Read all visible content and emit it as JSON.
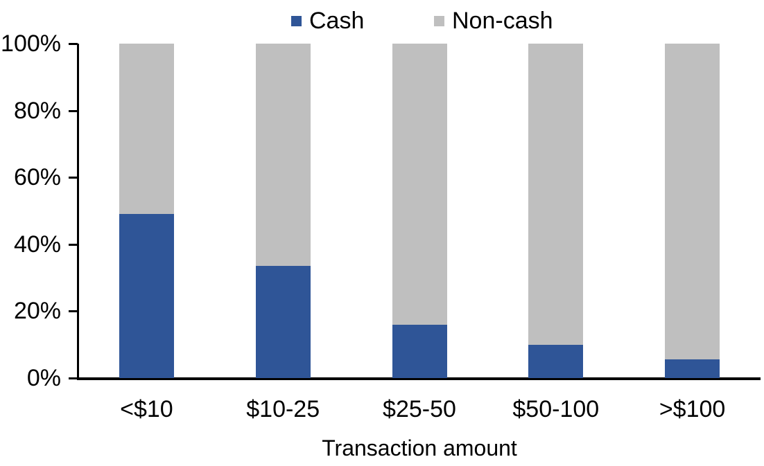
{
  "chart_data": {
    "type": "bar",
    "stacked": true,
    "percent_stacked": true,
    "title": "",
    "xlabel": "Transaction amount",
    "ylabel": "",
    "categories": [
      "<$10",
      "$10-25",
      "$25-50",
      "$50-100",
      ">$100"
    ],
    "series": [
      {
        "name": "Cash",
        "color": "#2F5597",
        "values": [
          49,
          33.5,
          16,
          10,
          5.5
        ]
      },
      {
        "name": "Non-cash",
        "color": "#BFBFBF",
        "values": [
          51,
          66.5,
          84,
          90,
          94.5
        ]
      }
    ],
    "yticks": [
      "0%",
      "20%",
      "40%",
      "60%",
      "80%",
      "100%"
    ],
    "ytick_values": [
      0,
      20,
      40,
      60,
      80,
      100
    ],
    "ylim": [
      0,
      100
    ],
    "grid": false,
    "legend_position": "top",
    "axis_color": "#000000"
  }
}
